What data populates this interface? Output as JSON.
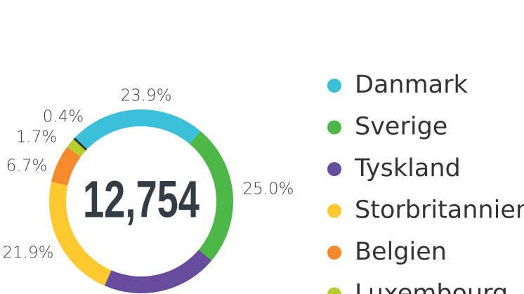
{
  "chart_data": {
    "type": "donut",
    "center_label": "12,754",
    "series": [
      {
        "name": "Danmark",
        "color": "#3ac0d8",
        "values": [
          23.9
        ],
        "value_labels": [
          "23.9%"
        ]
      },
      {
        "name": "Sverige",
        "color": "#4db848",
        "values": [
          25.0
        ],
        "value_labels": [
          "25.0%"
        ]
      },
      {
        "name": "Tyskland",
        "color": "#674c9e",
        "values": [
          20.4
        ],
        "value_labels": [
          null
        ]
      },
      {
        "name": "Storbritannien",
        "color": "#fdc92f",
        "values": [
          21.9
        ],
        "value_labels": [
          "21.9%"
        ]
      },
      {
        "name": "Belgien",
        "color": "#f48a2b",
        "values": [
          6.7
        ],
        "value_labels": [
          "6.7%"
        ]
      },
      {
        "name": "Luxembourg",
        "color": "#b6cf2d",
        "values": [
          1.7
        ],
        "value_labels": [
          "1.7%"
        ]
      },
      {
        "name": null,
        "color": "#2f3338",
        "values": [
          0.4
        ],
        "value_labels": [
          "0.4%"
        ]
      }
    ]
  }
}
